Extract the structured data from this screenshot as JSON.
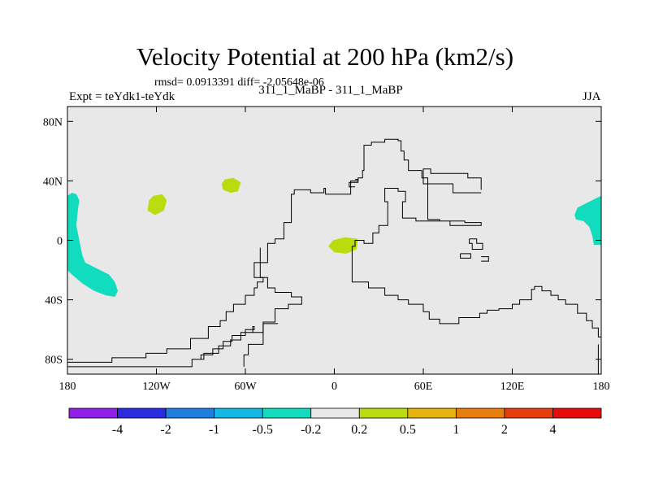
{
  "title": "Velocity Potential at 200 hPa (km2/s)",
  "stats": "rmsd= 0.0913391 diff= -2.05648e-06",
  "experiment": "Expt = teYdk1-teYdk",
  "run": "311_1_MaBP - 311_1_MaBP",
  "season": "JJA",
  "chart_data": {
    "type": "contour-map",
    "title": "Velocity Potential at 200 hPa (km2/s)",
    "units": "km2/s",
    "xlim": [
      -180,
      180
    ],
    "ylim": [
      -90,
      90
    ],
    "x_ticks": [
      {
        "value": -180,
        "label": "180"
      },
      {
        "value": -120,
        "label": "120W"
      },
      {
        "value": -60,
        "label": "60W"
      },
      {
        "value": 0,
        "label": "0"
      },
      {
        "value": 60,
        "label": "60E"
      },
      {
        "value": 120,
        "label": "120E"
      },
      {
        "value": 180,
        "label": "180"
      }
    ],
    "y_ticks": [
      {
        "value": 80,
        "label": "80N"
      },
      {
        "value": 40,
        "label": "40N"
      },
      {
        "value": 0,
        "label": "0"
      },
      {
        "value": -40,
        "label": "40S"
      },
      {
        "value": -80,
        "label": "80S"
      }
    ],
    "background_color": "#e8e8e8",
    "colorbar": {
      "levels": [
        "-4",
        "-2",
        "-1",
        "-0.5",
        "-0.2",
        "0.2",
        "0.5",
        "1",
        "2",
        "4"
      ],
      "colors": [
        "#8f1fe6",
        "#2a2ae0",
        "#1f7fde",
        "#14b8e3",
        "#12dcbe",
        "#e8e8e8",
        "#b8dc0e",
        "#e6b40c",
        "#e67d0c",
        "#e63c0c",
        "#e60c0c"
      ]
    },
    "regions": [
      {
        "name": "teal-west-arc",
        "color": "#12dcbe",
        "lonlat": [
          [
            -180,
            30
          ],
          [
            -177,
            32
          ],
          [
            -174,
            31
          ],
          [
            -172,
            27
          ],
          [
            -173,
            20
          ],
          [
            -174,
            10
          ],
          [
            -172,
            0
          ],
          [
            -170,
            -10
          ],
          [
            -168,
            -15
          ],
          [
            -160,
            -19
          ],
          [
            -152,
            -23
          ],
          [
            -148,
            -28
          ],
          [
            -146,
            -34
          ],
          [
            -148,
            -38
          ],
          [
            -154,
            -37
          ],
          [
            -162,
            -34
          ],
          [
            -170,
            -29
          ],
          [
            -177,
            -23
          ],
          [
            -180,
            -20
          ]
        ]
      },
      {
        "name": "teal-east-patch",
        "color": "#12dcbe",
        "lonlat": [
          [
            180,
            30
          ],
          [
            176,
            28
          ],
          [
            170,
            25
          ],
          [
            164,
            22
          ],
          [
            162,
            17
          ],
          [
            163,
            14
          ],
          [
            168,
            13
          ],
          [
            172,
            9
          ],
          [
            174,
            3
          ],
          [
            175,
            -3
          ],
          [
            180,
            -3
          ]
        ]
      },
      {
        "name": "green-patch-1",
        "color": "#b8dc0e",
        "lonlat": [
          [
            -122,
            30
          ],
          [
            -116,
            31
          ],
          [
            -113,
            27
          ],
          [
            -115,
            20
          ],
          [
            -121,
            17
          ],
          [
            -126,
            20
          ],
          [
            -125,
            27
          ]
        ]
      },
      {
        "name": "green-patch-2",
        "color": "#b8dc0e",
        "lonlat": [
          [
            -74,
            41
          ],
          [
            -68,
            42
          ],
          [
            -63,
            39
          ],
          [
            -65,
            33
          ],
          [
            -70,
            32
          ],
          [
            -75,
            34
          ],
          [
            -76,
            38
          ]
        ]
      },
      {
        "name": "green-patch-3",
        "color": "#b8dc0e",
        "lonlat": [
          [
            -1,
            0
          ],
          [
            7,
            2
          ],
          [
            16,
            1
          ],
          [
            15,
            -6
          ],
          [
            8,
            -9
          ],
          [
            0,
            -8
          ],
          [
            -4,
            -4
          ]
        ]
      }
    ],
    "coastlines": [
      {
        "name": "contour-main",
        "lonlat": [
          [
            -180,
            -82
          ],
          [
            -150,
            -82
          ],
          [
            -150,
            -79
          ],
          [
            -127,
            -79
          ],
          [
            -127,
            -76
          ],
          [
            -113,
            -76
          ],
          [
            -113,
            -73
          ],
          [
            -97,
            -73
          ],
          [
            -97,
            -66
          ],
          [
            -85,
            -66
          ],
          [
            -85,
            -58
          ],
          [
            -77,
            -58
          ],
          [
            -77,
            -54
          ],
          [
            -73,
            -54
          ],
          [
            -73,
            -48
          ],
          [
            -68,
            -48
          ],
          [
            -68,
            -43
          ],
          [
            -60,
            -43
          ],
          [
            -60,
            -37
          ],
          [
            -54,
            -37
          ],
          [
            -54,
            -32
          ],
          [
            -52,
            -32
          ],
          [
            -52,
            -28
          ],
          [
            -48,
            -28
          ],
          [
            -48,
            -25
          ],
          [
            -54,
            -25
          ],
          [
            -54,
            -15
          ],
          [
            -45,
            -15
          ],
          [
            -45,
            -2
          ],
          [
            -40,
            -2
          ],
          [
            -40,
            1
          ],
          [
            -34,
            1
          ],
          [
            -34,
            12
          ],
          [
            -29,
            12
          ],
          [
            -29,
            31
          ],
          [
            -27,
            31
          ],
          [
            -27,
            34
          ],
          [
            -16,
            34
          ],
          [
            -16,
            32
          ],
          [
            -7,
            32
          ],
          [
            -7,
            35
          ],
          [
            -6,
            35
          ],
          [
            -6,
            31
          ],
          [
            11,
            31
          ],
          [
            11,
            40
          ],
          [
            16,
            40
          ],
          [
            16,
            42
          ],
          [
            19,
            42
          ],
          [
            19,
            47
          ],
          [
            20,
            47
          ],
          [
            20,
            64
          ],
          [
            25,
            64
          ],
          [
            25,
            66
          ],
          [
            34,
            66
          ],
          [
            34,
            68
          ],
          [
            43,
            68
          ],
          [
            43,
            67
          ],
          [
            45,
            67
          ],
          [
            45,
            60
          ],
          [
            47,
            60
          ],
          [
            47,
            54
          ],
          [
            50,
            54
          ],
          [
            50,
            47
          ],
          [
            59,
            47
          ],
          [
            59,
            42
          ],
          [
            63,
            42
          ],
          [
            63,
            14
          ],
          [
            71,
            14
          ],
          [
            71,
            13
          ],
          [
            88,
            13
          ],
          [
            88,
            12
          ],
          [
            99,
            12
          ],
          [
            99,
            10
          ],
          [
            78,
            10
          ],
          [
            78,
            13
          ],
          [
            55,
            13
          ],
          [
            55,
            15
          ],
          [
            46,
            15
          ],
          [
            46,
            26
          ],
          [
            48,
            26
          ],
          [
            48,
            33
          ],
          [
            43,
            33
          ],
          [
            43,
            35
          ],
          [
            34,
            35
          ],
          [
            34,
            26
          ],
          [
            36,
            26
          ],
          [
            36,
            10
          ],
          [
            30,
            10
          ],
          [
            30,
            5
          ],
          [
            26,
            5
          ],
          [
            26,
            -2
          ],
          [
            20,
            -2
          ],
          [
            20,
            0
          ],
          [
            14,
            0
          ],
          [
            14,
            -4
          ],
          [
            12,
            -4
          ],
          [
            12,
            -28
          ],
          [
            23,
            -28
          ],
          [
            23,
            -32
          ],
          [
            34,
            -32
          ],
          [
            34,
            -37
          ],
          [
            43,
            -37
          ],
          [
            43,
            -40
          ],
          [
            50,
            -40
          ],
          [
            50,
            -43
          ],
          [
            60,
            -43
          ],
          [
            60,
            -48
          ],
          [
            64,
            -48
          ],
          [
            64,
            -53
          ],
          [
            71,
            -53
          ],
          [
            71,
            -56
          ],
          [
            84,
            -56
          ],
          [
            84,
            -52
          ],
          [
            98,
            -52
          ],
          [
            98,
            -49
          ],
          [
            103,
            -49
          ],
          [
            103,
            -47
          ],
          [
            111,
            -47
          ],
          [
            111,
            -46
          ],
          [
            120,
            -46
          ],
          [
            120,
            -43
          ],
          [
            125,
            -43
          ],
          [
            125,
            -40
          ],
          [
            133,
            -40
          ],
          [
            133,
            -33
          ],
          [
            135,
            -33
          ],
          [
            135,
            -31
          ],
          [
            140,
            -31
          ],
          [
            140,
            -34
          ],
          [
            146,
            -34
          ],
          [
            146,
            -37
          ],
          [
            151,
            -37
          ],
          [
            151,
            -40
          ],
          [
            156,
            -40
          ],
          [
            156,
            -43
          ],
          [
            164,
            -43
          ],
          [
            164,
            -49
          ],
          [
            170,
            -49
          ],
          [
            170,
            -54
          ],
          [
            174,
            -54
          ],
          [
            174,
            -59
          ],
          [
            178,
            -59
          ],
          [
            178,
            -65
          ],
          [
            180,
            -65
          ]
        ]
      },
      {
        "name": "contour-ridge",
        "lonlat": [
          [
            -180,
            -85
          ],
          [
            -96,
            -85
          ],
          [
            -96,
            -80
          ],
          [
            -88,
            -80
          ],
          [
            -88,
            -76
          ],
          [
            -78,
            -76
          ],
          [
            -78,
            -71
          ],
          [
            -70,
            -71
          ],
          [
            -70,
            -67
          ],
          [
            -63,
            -67
          ],
          [
            -63,
            -62
          ],
          [
            -55,
            -62
          ],
          [
            -55,
            -58
          ],
          [
            -54,
            -58
          ],
          [
            -54,
            -60
          ],
          [
            -60,
            -60
          ],
          [
            -60,
            -64
          ],
          [
            -69,
            -64
          ],
          [
            -69,
            -68
          ],
          [
            -75,
            -68
          ],
          [
            -75,
            -73
          ],
          [
            -82,
            -73
          ],
          [
            -82,
            -77
          ],
          [
            -90,
            -77
          ],
          [
            -90,
            -80
          ],
          [
            -96,
            -80
          ]
        ]
      },
      {
        "name": "contour-inner",
        "lonlat": [
          [
            -55,
            -62
          ],
          [
            -48,
            -62
          ],
          [
            -48,
            -55
          ],
          [
            -40,
            -55
          ],
          [
            -40,
            -46
          ],
          [
            -31,
            -46
          ],
          [
            -31,
            -43
          ],
          [
            -22,
            -43
          ],
          [
            -22,
            -38
          ],
          [
            -29,
            -38
          ],
          [
            -29,
            -35
          ],
          [
            -40,
            -35
          ],
          [
            -40,
            -32
          ],
          [
            -45,
            -32
          ],
          [
            -45,
            -25
          ],
          [
            -50,
            -25
          ],
          [
            -50,
            -10
          ],
          [
            -50,
            -5
          ]
        ]
      },
      {
        "name": "contour-south-dip",
        "lonlat": [
          [
            -61,
            -85
          ],
          [
            -61,
            -77
          ],
          [
            -58,
            -77
          ],
          [
            -58,
            -70
          ],
          [
            -48,
            -70
          ],
          [
            -48,
            -56
          ],
          [
            -38,
            -56
          ]
        ]
      },
      {
        "name": "contour-ne-branch",
        "lonlat": [
          [
            99,
            32
          ],
          [
            80,
            32
          ],
          [
            80,
            38
          ],
          [
            60,
            38
          ],
          [
            60,
            48
          ],
          [
            65,
            48
          ],
          [
            65,
            45
          ],
          [
            90,
            45
          ],
          [
            90,
            42
          ],
          [
            99,
            42
          ],
          [
            99,
            34
          ]
        ]
      },
      {
        "name": "contour-islands-1",
        "lonlat": [
          [
            91,
            1
          ],
          [
            96,
            1
          ],
          [
            96,
            -2
          ],
          [
            100,
            -2
          ],
          [
            100,
            -6
          ],
          [
            93,
            -6
          ],
          [
            93,
            -2
          ],
          [
            91,
            -2
          ],
          [
            91,
            1
          ]
        ]
      },
      {
        "name": "contour-islands-2",
        "lonlat": [
          [
            85,
            -9
          ],
          [
            92,
            -9
          ],
          [
            92,
            -12
          ],
          [
            85,
            -12
          ],
          [
            85,
            -9
          ]
        ]
      },
      {
        "name": "contour-islands-3",
        "lonlat": [
          [
            99,
            -11
          ],
          [
            104,
            -11
          ],
          [
            104,
            -14
          ],
          [
            99,
            -14
          ]
        ]
      },
      {
        "name": "contour-hook",
        "lonlat": [
          [
            14,
            41
          ],
          [
            16,
            41
          ],
          [
            16,
            39
          ],
          [
            10,
            39
          ],
          [
            10,
            36
          ],
          [
            14,
            36
          ]
        ]
      },
      {
        "name": "contour-far-east",
        "lonlat": [
          [
            180,
            -90
          ],
          [
            178,
            -90
          ],
          [
            178,
            -70
          ]
        ]
      }
    ]
  }
}
